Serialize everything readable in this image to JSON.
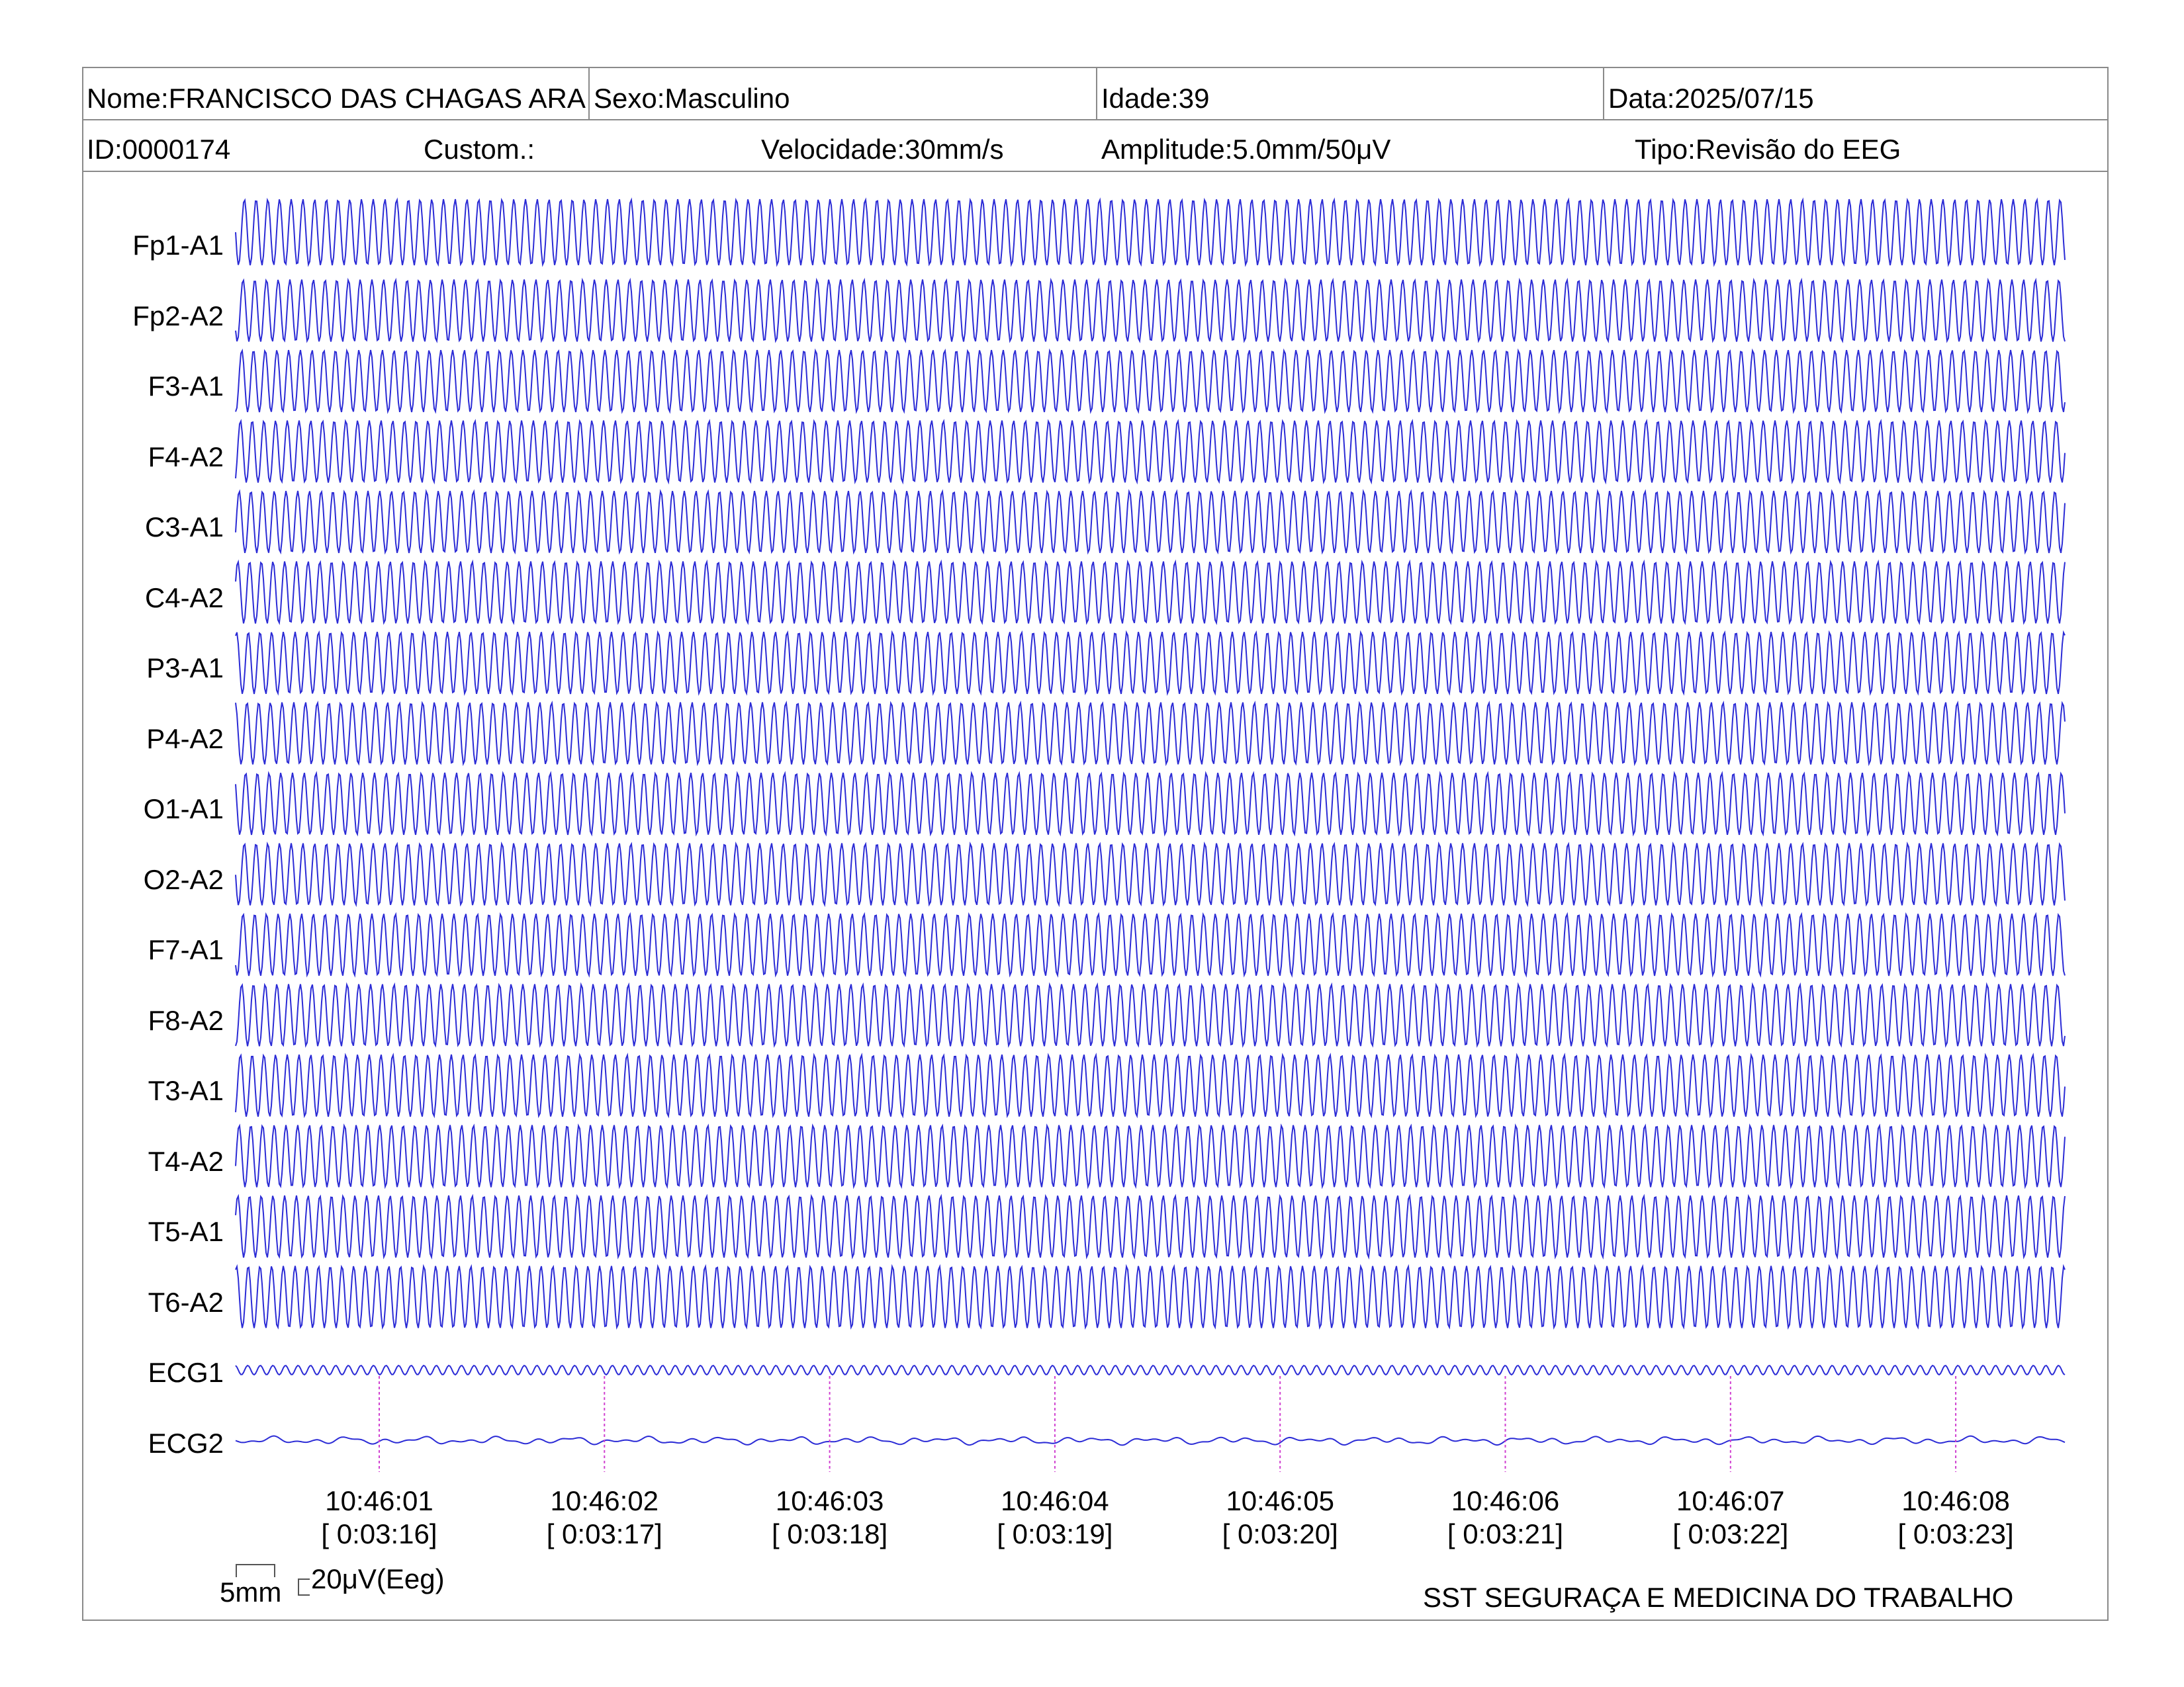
{
  "header": {
    "nome": "Nome:FRANCISCO DAS CHAGAS ARA",
    "sexo": "Sexo:Masculino",
    "idade": "Idade:39",
    "data": "Data:2025/07/15",
    "id": "ID:0000174",
    "custom": "Custom.:",
    "velocidade": "Velocidade:30mm/s",
    "amplitude": "Amplitude:5.0mm/50μV",
    "tipo": "Tipo:Revisão do EEG"
  },
  "channels": [
    "Fp1-A1",
    "Fp2-A2",
    "F3-A1",
    "F4-A2",
    "C3-A1",
    "C4-A2",
    "P3-A1",
    "P4-A2",
    "O1-A1",
    "O2-A2",
    "F7-A1",
    "F8-A2",
    "T3-A1",
    "T4-A2",
    "T5-A1",
    "T6-A2",
    "ECG1",
    "ECG2"
  ],
  "time_markers": [
    {
      "clock": "10:46:01",
      "elapsed": "[ 0:03:16]"
    },
    {
      "clock": "10:46:02",
      "elapsed": "[ 0:03:17]"
    },
    {
      "clock": "10:46:03",
      "elapsed": "[ 0:03:18]"
    },
    {
      "clock": "10:46:04",
      "elapsed": "[ 0:03:19]"
    },
    {
      "clock": "10:46:05",
      "elapsed": "[ 0:03:20]"
    },
    {
      "clock": "10:46:06",
      "elapsed": "[ 0:03:21]"
    },
    {
      "clock": "10:46:07",
      "elapsed": "[ 0:03:22]"
    },
    {
      "clock": "10:46:08",
      "elapsed": "[ 0:03:23]"
    }
  ],
  "scale": {
    "time_label": "5mm",
    "amp_label": "20μV(Eeg)"
  },
  "footer": {
    "company": "SST SEGURAÇA E MEDICINA DO TRABALHO"
  },
  "colors": {
    "trace": "#2b2bd6",
    "marker": "#d040d0",
    "border": "#8a8a8a"
  }
}
